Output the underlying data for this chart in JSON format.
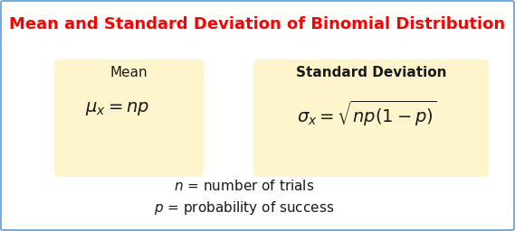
{
  "title": "Mean and Standard Deviation of Binomial Distribution",
  "title_color": "#FF0000",
  "title_fontsize": 13.0,
  "background_color": "#FFFFFF",
  "border_color": "#5B9BD5",
  "box_color": "#FFF5CC",
  "box_edge_color": "#E8D070",
  "mean_label": "Mean",
  "mean_formula": "$\\mu_x = np$",
  "std_label": "Standard Deviation",
  "std_formula": "$\\sigma_x = \\sqrt{np(1-p)}$",
  "note_line1": "$n$ = number of trials",
  "note_line2": "$p$ = probability of success",
  "label_fontsize": 11,
  "formula_fontsize": 14,
  "note_fontsize": 11
}
